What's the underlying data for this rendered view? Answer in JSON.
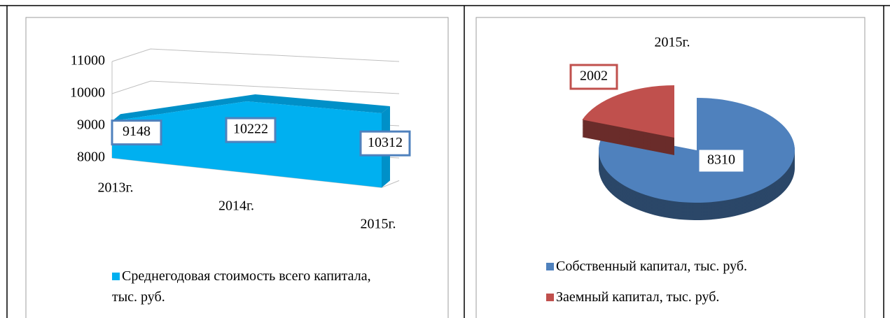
{
  "chart_data": [
    {
      "type": "area",
      "categories": [
        "2013г.",
        "2014г.",
        "2015г."
      ],
      "series": [
        {
          "name": "Среднегодовая стоимость всего капитала, тыс. руб.",
          "color": "#00b0f0",
          "values": [
            9148,
            10222,
            10312
          ]
        }
      ],
      "ylim": [
        8000,
        11000
      ],
      "yticks": [
        8000,
        9000,
        10000,
        11000
      ],
      "grid": true
    },
    {
      "type": "pie",
      "title": "2015г.",
      "categories": [
        "Собственный капитал, тыс. руб.",
        "Заемный капитал, тыс. руб."
      ],
      "values": [
        8310,
        2002
      ],
      "colors": [
        "#4f81bd",
        "#c0504d"
      ]
    }
  ]
}
